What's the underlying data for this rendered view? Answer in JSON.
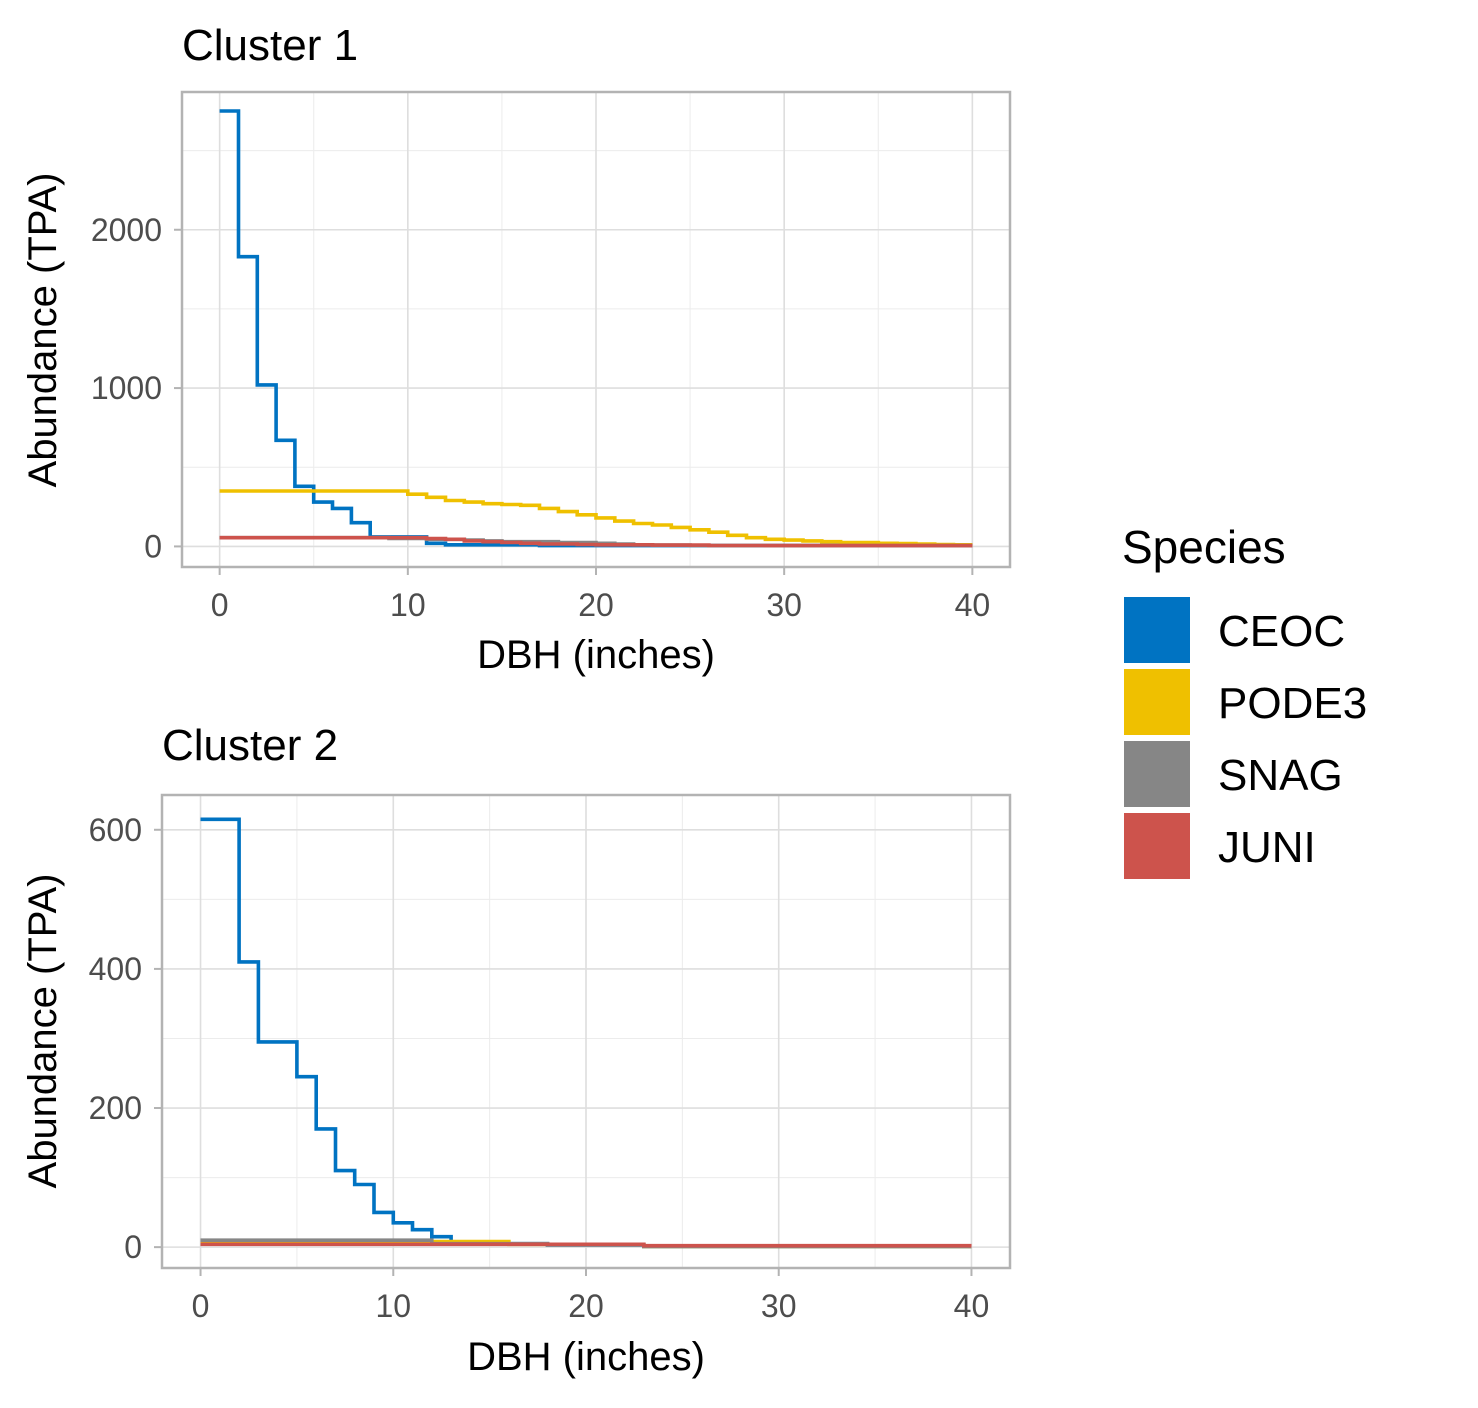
{
  "chart_data": [
    {
      "type": "line",
      "step": true,
      "title": "Cluster 1",
      "xlabel": "DBH (inches)",
      "ylabel": "Abundance (TPA)",
      "xlim": [
        -2,
        42
      ],
      "ylim": [
        -130,
        2870
      ],
      "xticks": [
        0,
        10,
        20,
        30,
        40
      ],
      "yticks": [
        0,
        1000,
        2000
      ],
      "grid": true,
      "series": [
        {
          "name": "CEOC",
          "color": "#0073c2",
          "x": [
            0,
            1,
            2,
            3,
            4,
            5,
            6,
            7,
            8,
            9,
            10,
            11,
            12,
            13,
            14,
            15,
            16,
            17,
            18,
            19,
            20,
            21,
            22,
            23,
            24,
            25,
            26,
            27,
            28,
            29,
            30,
            31,
            32,
            33,
            34,
            35,
            36,
            37,
            38,
            39,
            40
          ],
          "y": [
            2750,
            1830,
            1020,
            670,
            380,
            280,
            240,
            150,
            60,
            60,
            60,
            20,
            10,
            10,
            10,
            10,
            10,
            5,
            5,
            5,
            5,
            5,
            5,
            5,
            5,
            5,
            5,
            5,
            5,
            5,
            5,
            5,
            5,
            5,
            5,
            5,
            5,
            5,
            5,
            5,
            5
          ]
        },
        {
          "name": "PODE3",
          "color": "#efc000",
          "x": [
            0,
            1,
            2,
            3,
            4,
            5,
            6,
            7,
            8,
            9,
            10,
            11,
            12,
            13,
            14,
            15,
            16,
            17,
            18,
            19,
            20,
            21,
            22,
            23,
            24,
            25,
            26,
            27,
            28,
            29,
            30,
            31,
            32,
            33,
            34,
            35,
            36,
            37,
            38,
            39,
            40
          ],
          "y": [
            350,
            350,
            350,
            350,
            350,
            350,
            350,
            350,
            350,
            350,
            330,
            310,
            290,
            280,
            270,
            265,
            260,
            240,
            220,
            200,
            180,
            160,
            145,
            135,
            120,
            105,
            90,
            70,
            55,
            45,
            40,
            35,
            30,
            25,
            25,
            20,
            18,
            15,
            12,
            10,
            10
          ]
        },
        {
          "name": "SNAG",
          "color": "#868686",
          "x": [
            0,
            1,
            2,
            3,
            4,
            5,
            6,
            7,
            8,
            9,
            10,
            11,
            12,
            13,
            14,
            15,
            16,
            17,
            18,
            19,
            20,
            21,
            22,
            23,
            24,
            25,
            26,
            27,
            28,
            29,
            30,
            31,
            32,
            33,
            34,
            35,
            36,
            37,
            38,
            39,
            40
          ],
          "y": [
            55,
            55,
            55,
            55,
            55,
            55,
            55,
            55,
            55,
            50,
            50,
            45,
            45,
            40,
            35,
            30,
            30,
            30,
            25,
            25,
            20,
            15,
            10,
            8,
            8,
            6,
            6,
            5,
            5,
            5,
            5,
            5,
            5,
            5,
            5,
            5,
            5,
            5,
            5,
            5,
            5
          ]
        },
        {
          "name": "JUNI",
          "color": "#cd534c",
          "x": [
            0,
            1,
            2,
            3,
            4,
            5,
            6,
            7,
            8,
            9,
            10,
            11,
            12,
            13,
            14,
            15,
            16,
            17,
            18,
            19,
            20,
            21,
            22,
            23,
            24,
            25,
            26,
            27,
            28,
            29,
            30,
            31,
            32,
            33,
            34,
            35,
            36,
            37,
            38,
            39,
            40
          ],
          "y": [
            55,
            55,
            55,
            55,
            55,
            55,
            55,
            55,
            55,
            55,
            55,
            50,
            45,
            35,
            30,
            25,
            20,
            15,
            15,
            12,
            10,
            10,
            10,
            8,
            8,
            8,
            6,
            6,
            6,
            5,
            5,
            5,
            5,
            5,
            5,
            5,
            5,
            5,
            5,
            5,
            5
          ]
        }
      ]
    },
    {
      "type": "line",
      "step": true,
      "title": "Cluster 2",
      "xlabel": "DBH (inches)",
      "ylabel": "Abundance (TPA)",
      "xlim": [
        -2,
        42
      ],
      "ylim": [
        -30,
        650
      ],
      "xticks": [
        0,
        10,
        20,
        30,
        40
      ],
      "yticks": [
        0,
        200,
        400,
        600
      ],
      "grid": true,
      "series": [
        {
          "name": "CEOC",
          "color": "#0073c2",
          "x": [
            0,
            1,
            2,
            3,
            4,
            5,
            6,
            7,
            8,
            9,
            10,
            11,
            12,
            13,
            14,
            15,
            16,
            17,
            18,
            19,
            20,
            21,
            22,
            23,
            24,
            25,
            26,
            27,
            28,
            29,
            30,
            31,
            32,
            33,
            34,
            35,
            36,
            37,
            38,
            39,
            40
          ],
          "y": [
            615,
            615,
            410,
            295,
            295,
            245,
            170,
            110,
            90,
            50,
            35,
            25,
            15,
            5,
            5,
            5,
            5,
            5,
            3,
            3,
            3,
            3,
            3,
            1,
            1,
            1,
            1,
            1,
            1,
            1,
            1,
            1,
            1,
            1,
            1,
            1,
            1,
            1,
            1,
            1,
            1
          ]
        },
        {
          "name": "PODE3",
          "color": "#efc000",
          "x": [
            0,
            1,
            2,
            3,
            4,
            5,
            6,
            7,
            8,
            9,
            10,
            11,
            12,
            13,
            14,
            15,
            16,
            17,
            18,
            19,
            20,
            21,
            22,
            23,
            24,
            25,
            26,
            27,
            28,
            29,
            30,
            31,
            32,
            33,
            34,
            35,
            36,
            37,
            38,
            39,
            40
          ],
          "y": [
            8,
            8,
            8,
            8,
            8,
            8,
            8,
            8,
            8,
            8,
            8,
            8,
            8,
            8,
            8,
            8,
            4,
            4,
            4,
            4,
            4,
            4,
            4,
            1,
            1,
            1,
            1,
            1,
            1,
            1,
            1,
            1,
            1,
            1,
            1,
            1,
            1,
            1,
            1,
            1,
            1
          ]
        },
        {
          "name": "SNAG",
          "color": "#868686",
          "x": [
            0,
            1,
            2,
            3,
            4,
            5,
            6,
            7,
            8,
            9,
            10,
            11,
            12,
            13,
            14,
            15,
            16,
            17,
            18,
            19,
            20,
            21,
            22,
            23,
            24,
            25,
            26,
            27,
            28,
            29,
            30,
            31,
            32,
            33,
            34,
            35,
            36,
            37,
            38,
            39,
            40
          ],
          "y": [
            10,
            10,
            10,
            10,
            10,
            10,
            10,
            10,
            10,
            10,
            10,
            10,
            5,
            5,
            5,
            5,
            5,
            5,
            3,
            3,
            3,
            3,
            3,
            1,
            1,
            1,
            1,
            1,
            1,
            1,
            1,
            1,
            1,
            1,
            1,
            1,
            1,
            1,
            1,
            1,
            1
          ]
        },
        {
          "name": "JUNI",
          "color": "#cd534c",
          "x": [
            0,
            1,
            2,
            3,
            4,
            5,
            6,
            7,
            8,
            9,
            10,
            11,
            12,
            13,
            14,
            15,
            16,
            17,
            18,
            19,
            20,
            21,
            22,
            23,
            24,
            25,
            26,
            27,
            28,
            29,
            30,
            31,
            32,
            33,
            34,
            35,
            36,
            37,
            38,
            39,
            40
          ],
          "y": [
            4,
            4,
            4,
            4,
            4,
            4,
            4,
            4,
            4,
            4,
            4,
            4,
            4,
            4,
            4,
            4,
            4,
            4,
            4,
            4,
            4,
            4,
            4,
            2,
            2,
            2,
            2,
            2,
            2,
            2,
            2,
            2,
            2,
            2,
            2,
            2,
            2,
            2,
            2,
            2,
            2
          ]
        }
      ]
    }
  ],
  "legend": {
    "title": "Species",
    "position": "right",
    "items": [
      {
        "label": "CEOC",
        "color": "#0073c2"
      },
      {
        "label": "PODE3",
        "color": "#efc000"
      },
      {
        "label": "SNAG",
        "color": "#868686"
      },
      {
        "label": "JUNI",
        "color": "#cd534c"
      }
    ]
  }
}
